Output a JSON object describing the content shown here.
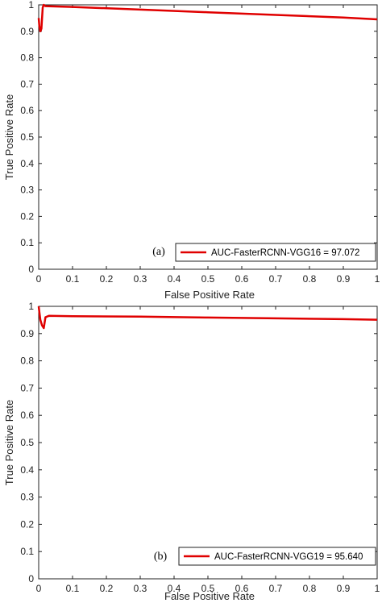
{
  "chart_data": [
    {
      "type": "line",
      "panel_label": "(a)",
      "xlabel": "False Positive Rate",
      "ylabel": "True Positive Rate",
      "xlim": [
        0,
        1
      ],
      "ylim": [
        0,
        1
      ],
      "x_ticks": [
        "0",
        "0.1",
        "0.2",
        "0.3",
        "0.4",
        "0.5",
        "0.6",
        "0.7",
        "0.8",
        "0.9",
        "1"
      ],
      "y_ticks": [
        "0",
        "0.1",
        "0.2",
        "0.3",
        "0.4",
        "0.5",
        "0.6",
        "0.7",
        "0.8",
        "0.9",
        "1"
      ],
      "grid": false,
      "legend_position": "bottom-right",
      "series": [
        {
          "name": "AUC-FasterRCNN-VGG16 = 97.072",
          "color": "#e00000",
          "x": [
            0,
            0.002,
            0.005,
            0.008,
            0.012,
            0.015,
            0.02,
            0.1,
            0.3,
            0.5,
            0.7,
            0.9,
            1.0
          ],
          "y": [
            0.95,
            0.92,
            0.9,
            0.91,
            0.99,
            1.0,
            0.995,
            0.992,
            0.982,
            0.972,
            0.962,
            0.952,
            0.945
          ]
        }
      ]
    },
    {
      "type": "line",
      "panel_label": "(b)",
      "xlabel": "False Positive Rate",
      "ylabel": "True Positive Rate",
      "xlim": [
        0,
        1
      ],
      "ylim": [
        0,
        1
      ],
      "x_ticks": [
        "0",
        "0.1",
        "0.2",
        "0.3",
        "0.4",
        "0.5",
        "0.6",
        "0.7",
        "0.8",
        "0.9",
        "1"
      ],
      "y_ticks": [
        "0",
        "0.1",
        "0.2",
        "0.3",
        "0.4",
        "0.5",
        "0.6",
        "0.7",
        "0.8",
        "0.9",
        "1"
      ],
      "grid": false,
      "legend_position": "bottom-right",
      "series": [
        {
          "name": "AUC-FasterRCNN-VGG19 = 95.640",
          "color": "#e00000",
          "x": [
            0,
            0.002,
            0.005,
            0.01,
            0.015,
            0.02,
            0.03,
            0.1,
            0.3,
            0.5,
            0.7,
            0.9,
            1.0
          ],
          "y": [
            1.0,
            0.98,
            0.95,
            0.93,
            0.92,
            0.96,
            0.965,
            0.964,
            0.962,
            0.959,
            0.956,
            0.953,
            0.951
          ]
        }
      ]
    }
  ]
}
